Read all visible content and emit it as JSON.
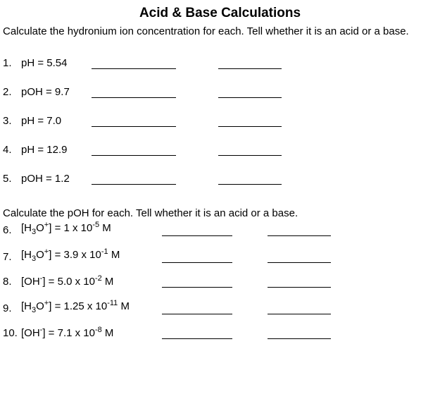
{
  "title": "Acid & Base Calculations",
  "instruction1": "Calculate the hydronium ion concentration for each. Tell whether it is an acid or a base.",
  "instruction2": "Calculate the pOH for each. Tell whether it is an acid or a base.",
  "section1": {
    "q1": {
      "num": "1.",
      "label": "pH = 5.54"
    },
    "q2": {
      "num": "2.",
      "label": "pOH = 9.7"
    },
    "q3": {
      "num": "3.",
      "label": "pH = 7.0"
    },
    "q4": {
      "num": "4.",
      "label": "pH = 12.9"
    },
    "q5": {
      "num": "5.",
      "label": "pOH = 1.2"
    }
  },
  "section2": {
    "q6": {
      "num": "6.",
      "pre": "[H",
      "sub1": "3",
      "mid1": "O",
      "sup1": "+",
      "mid2": "] = 1 x 10",
      "sup2": "-5",
      "post": " M"
    },
    "q7": {
      "num": "7.",
      "pre": "[H",
      "sub1": "3",
      "mid1": "O",
      "sup1": "+",
      "mid2": "] = 3.9 x 10",
      "sup2": "-1",
      "post": " M"
    },
    "q8": {
      "num": "8.",
      "pre": "[OH",
      "sup1": "-",
      "mid2": "] = 5.0 x 10",
      "sup2": "-2",
      "post": " M"
    },
    "q9": {
      "num": "9.",
      "pre": "[H",
      "sub1": "3",
      "mid1": "O",
      "sup1": "+",
      "mid2": "] = 1.25 x 10",
      "sup2": "-11",
      "post": " M"
    },
    "q10": {
      "num": "10.",
      "pre": " [OH",
      "sup1": "-",
      "mid2": "] = 7.1 x 10",
      "sup2": "-8",
      "post": " M"
    }
  }
}
